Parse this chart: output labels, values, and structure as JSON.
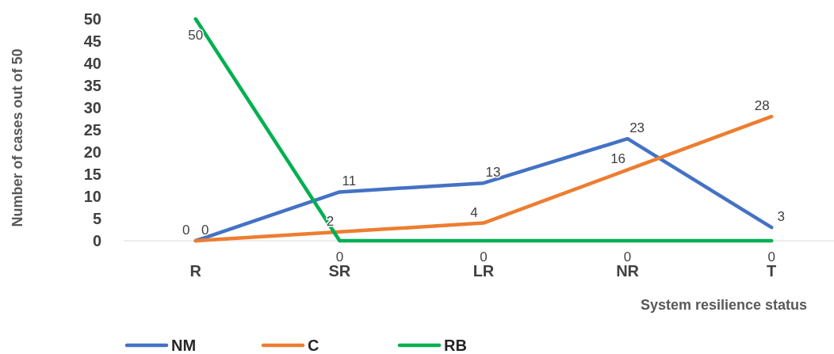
{
  "chart_data": {
    "type": "line",
    "xlabel": "System resilience status",
    "ylabel": "Number of cases out of 50",
    "categories": [
      "R",
      "SR",
      "LR",
      "NR",
      "T"
    ],
    "series": [
      {
        "name": "NM",
        "color": "#4472c4",
        "values": [
          0,
          11,
          13,
          23,
          3
        ]
      },
      {
        "name": "C",
        "color": "#ed7d31",
        "values": [
          0,
          2,
          4,
          16,
          28
        ]
      },
      {
        "name": "RB",
        "color": "#00b050",
        "values": [
          50,
          0,
          0,
          0,
          0
        ]
      }
    ],
    "ylim": [
      0,
      50
    ],
    "yticks": [
      0,
      5,
      10,
      15,
      20,
      25,
      30,
      35,
      40,
      45,
      50
    ],
    "data_labels": true,
    "legend": "bottom",
    "grid": false,
    "marker": "none",
    "line_style": "solid"
  }
}
